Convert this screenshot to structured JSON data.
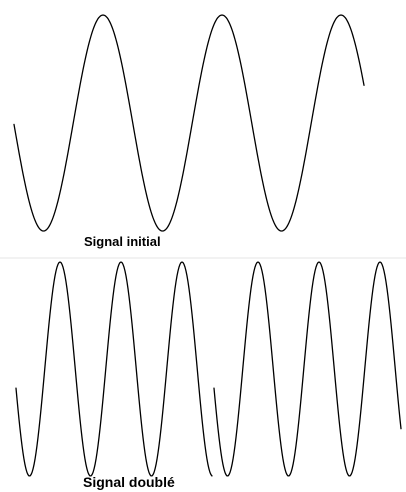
{
  "figure": {
    "initial_caption": "Signal initial",
    "doubled_caption": "Signal doublé",
    "colors": {
      "stroke": "#000000",
      "background": "#ffffff",
      "divider": "#e6e6e6"
    }
  },
  "waveforms": {
    "initial": {
      "cycles_shown": 3,
      "relative_frequency": 1
    },
    "doubled": {
      "cycles_shown": 6,
      "relative_frequency": 2,
      "segments": 2
    }
  }
}
